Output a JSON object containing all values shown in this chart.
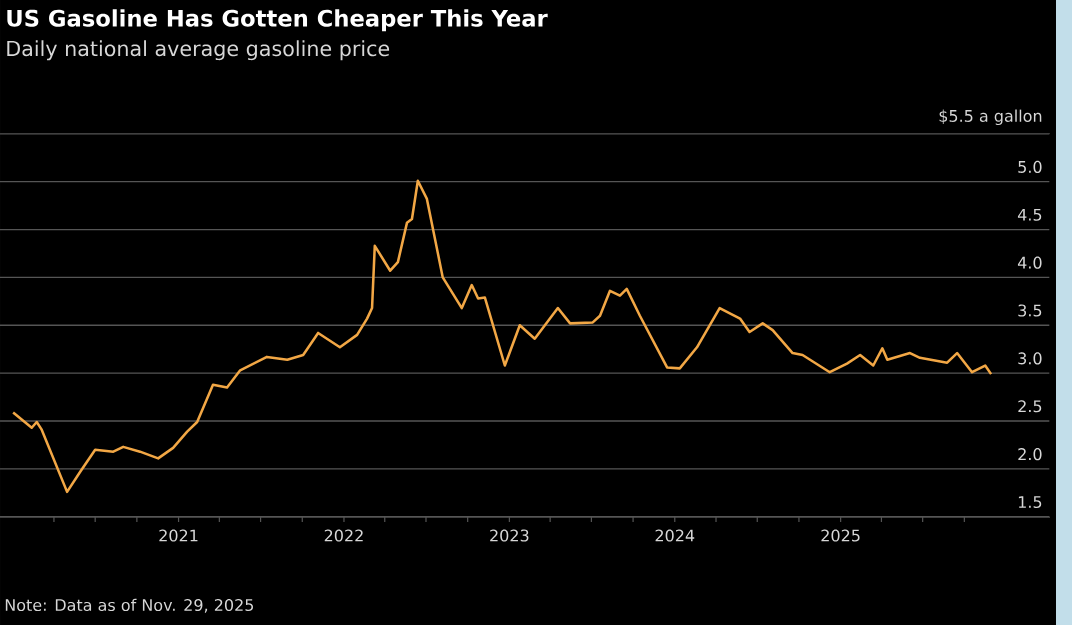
{
  "chart_data": {
    "type": "line",
    "title": "US Gasoline Has Gotten Cheaper This Year",
    "subtitle": "Daily national average gasoline price",
    "annotations": [
      "Note: Data as of Nov. 29, 2025"
    ],
    "x": [
      "2020-01-02",
      "2020-02-12",
      "2020-02-23",
      "2020-03-05",
      "2020-04-30",
      "2020-05-29",
      "2020-07-01",
      "2020-08-10",
      "2020-09-01",
      "2020-10-08",
      "2020-11-17",
      "2020-12-20",
      "2021-01-20",
      "2021-02-11",
      "2021-03-18",
      "2021-04-18",
      "2021-05-17",
      "2021-07-15",
      "2021-08-29",
      "2021-10-03",
      "2021-11-05",
      "2021-12-23",
      "2022-01-30",
      "2022-02-21",
      "2022-03-04",
      "2022-03-10",
      "2022-04-13",
      "2022-04-30",
      "2022-05-20",
      "2022-05-31",
      "2022-06-13",
      "2022-07-03",
      "2022-08-07",
      "2022-09-18",
      "2022-10-10",
      "2022-10-24",
      "2022-11-08",
      "2022-12-22",
      "2023-01-24",
      "2023-02-26",
      "2023-04-18",
      "2023-05-15",
      "2023-07-04",
      "2023-07-20",
      "2023-08-11",
      "2023-09-02",
      "2023-09-17",
      "2023-10-16",
      "2023-12-15",
      "2024-01-12",
      "2024-02-19",
      "2024-04-09",
      "2024-05-24",
      "2024-06-14",
      "2024-07-13",
      "2024-08-04",
      "2024-09-17",
      "2024-10-09",
      "2024-12-08",
      "2025-01-15",
      "2025-02-13",
      "2025-03-14",
      "2025-04-03",
      "2025-04-14",
      "2025-06-03",
      "2025-06-25",
      "2025-08-24",
      "2025-09-15",
      "2025-10-18",
      "2025-11-16",
      "2025-11-29"
    ],
    "series": [
      {
        "color": "#f2a745",
        "values": [
          2.59,
          2.43,
          2.49,
          2.41,
          1.76,
          1.97,
          2.2,
          2.18,
          2.23,
          2.18,
          2.11,
          2.22,
          2.39,
          2.49,
          2.88,
          2.85,
          3.03,
          3.17,
          3.14,
          3.19,
          3.42,
          3.27,
          3.4,
          3.57,
          3.68,
          4.33,
          4.07,
          4.16,
          4.57,
          4.61,
          5.01,
          4.82,
          4.0,
          3.68,
          3.92,
          3.78,
          3.79,
          3.08,
          3.5,
          3.36,
          3.68,
          3.52,
          3.53,
          3.6,
          3.86,
          3.81,
          3.88,
          3.6,
          3.06,
          3.05,
          3.27,
          3.68,
          3.57,
          3.43,
          3.52,
          3.45,
          3.21,
          3.19,
          3.01,
          3.1,
          3.19,
          3.08,
          3.26,
          3.14,
          3.21,
          3.16,
          3.11,
          3.21,
          3.01,
          3.08,
          2.99
        ]
      }
    ],
    "xlim": [
      "2019-12-04",
      "2026-04-08"
    ],
    "xticks": [
      {
        "value": "2020-04-01",
        "label": null
      },
      {
        "value": "2020-07-01",
        "label": null
      },
      {
        "value": "2020-10-01",
        "label": null
      },
      {
        "value": "2021-01-01",
        "label": "2021"
      },
      {
        "value": "2021-04-01",
        "label": null
      },
      {
        "value": "2021-07-01",
        "label": null
      },
      {
        "value": "2021-10-01",
        "label": null
      },
      {
        "value": "2022-01-01",
        "label": "2022"
      },
      {
        "value": "2022-04-01",
        "label": null
      },
      {
        "value": "2022-07-01",
        "label": null
      },
      {
        "value": "2022-10-01",
        "label": null
      },
      {
        "value": "2023-01-01",
        "label": "2023"
      },
      {
        "value": "2023-04-01",
        "label": null
      },
      {
        "value": "2023-07-01",
        "label": null
      },
      {
        "value": "2023-10-01",
        "label": null
      },
      {
        "value": "2024-01-01",
        "label": "2024"
      },
      {
        "value": "2024-04-01",
        "label": null
      },
      {
        "value": "2024-07-01",
        "label": null
      },
      {
        "value": "2024-10-01",
        "label": null
      },
      {
        "value": "2025-01-01",
        "label": "2025"
      },
      {
        "value": "2025-04-01",
        "label": null
      },
      {
        "value": "2025-07-01",
        "label": null
      },
      {
        "value": "2025-10-01",
        "label": null
      }
    ],
    "ylim": [
      1.5,
      5.5
    ],
    "yticks": [
      1.5,
      {
        "value": 2,
        "label": "2.0"
      },
      2.5,
      {
        "value": 3,
        "label": "3.0"
      },
      3.5,
      {
        "value": 4,
        "label": "4.0"
      },
      4.5,
      {
        "value": 5,
        "label": "5.0"
      },
      {
        "value": 5.5,
        "label": "$5.5 a gallon"
      }
    ],
    "grid": "y",
    "marker": "none",
    "line_style": "solid"
  }
}
